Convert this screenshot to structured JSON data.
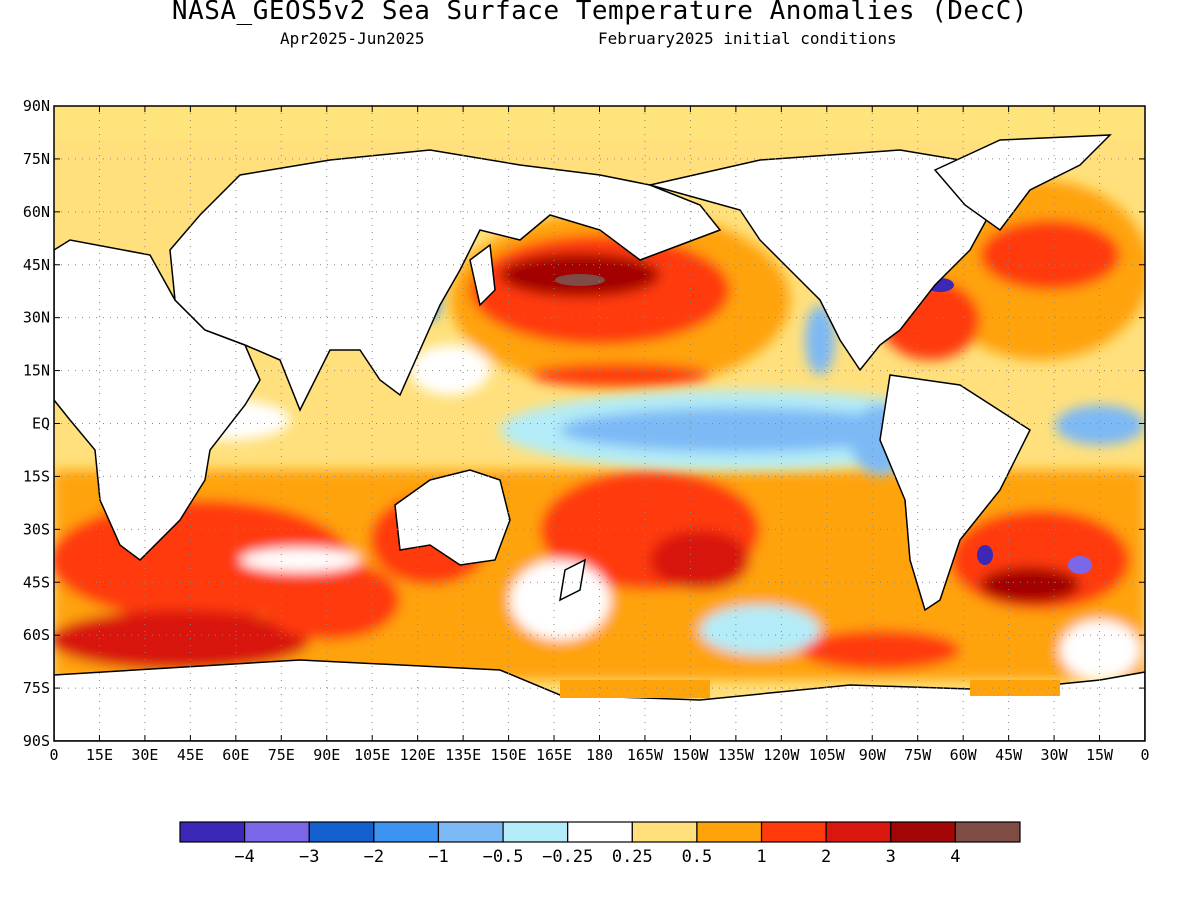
{
  "title": "NASA_GEOS5v2 Sea Surface Temperature Anomalies (DecC)",
  "subtitle_period": "Apr2025-Jun2025",
  "subtitle_init": "February2025 initial conditions",
  "axes": {
    "y_ticks": [
      "90N",
      "75N",
      "60N",
      "45N",
      "30N",
      "15N",
      "EQ",
      "15S",
      "30S",
      "45S",
      "60S",
      "75S",
      "90S"
    ],
    "x_ticks": [
      "0",
      "15E",
      "30E",
      "45E",
      "60E",
      "75E",
      "90E",
      "105E",
      "120E",
      "135E",
      "150E",
      "165E",
      "180",
      "165W",
      "150W",
      "135W",
      "120W",
      "105W",
      "90W",
      "75W",
      "60W",
      "45W",
      "30W",
      "15W",
      "0"
    ],
    "lon_range": [
      0,
      360
    ],
    "lat_range": [
      -90,
      90
    ],
    "grid": "dotted"
  },
  "colorbar": {
    "colors": [
      "#3b28b7",
      "#7b68e8",
      "#1560cf",
      "#3d93f2",
      "#7db9f5",
      "#b3ecf8",
      "#ffffff",
      "#ffe07c",
      "#ffa30a",
      "#ff3b0c",
      "#d8170e",
      "#a30606",
      "#7e4c44"
    ],
    "labels": [
      "−4",
      "−3",
      "−2",
      "−1",
      "−0.5",
      "−0.25",
      "0.25",
      "0.5",
      "1",
      "2",
      "3",
      "4"
    ]
  },
  "colors": {
    "land": "#ffffff",
    "arctic": "#ffe47c",
    "coast": "#000000"
  }
}
